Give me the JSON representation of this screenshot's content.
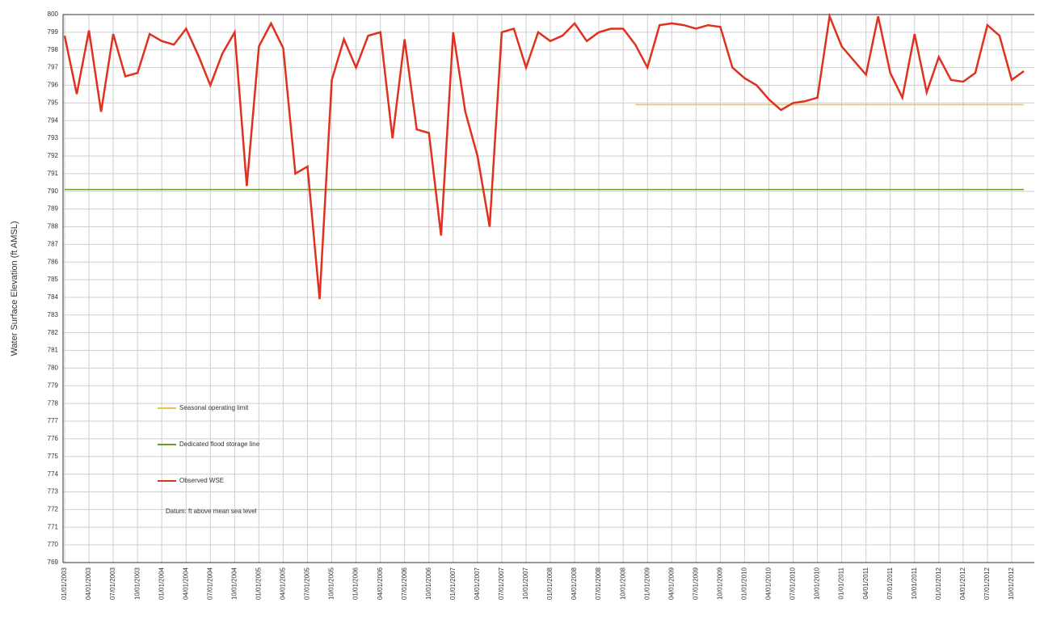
{
  "chart_data": {
    "type": "line",
    "y_label": "Water Surface Elevation (ft AMSL)",
    "note": "Datum: ft above mean sea level",
    "categories": [
      "01/01/2003",
      null,
      "04/01/2003",
      null,
      "07/01/2003",
      null,
      "10/01/2003",
      null,
      "01/01/2004",
      null,
      "04/01/2004",
      null,
      "07/01/2004",
      null,
      "10/01/2004",
      null,
      "01/01/2005",
      null,
      "04/01/2005",
      null,
      "07/01/2005",
      null,
      "10/01/2005",
      null,
      "01/01/2006",
      null,
      "04/01/2006",
      null,
      "07/01/2006",
      null,
      "10/01/2006",
      null,
      "01/01/2007",
      null,
      "04/01/2007",
      null,
      "07/01/2007",
      null,
      "10/01/2007",
      null,
      "01/01/2008",
      null,
      "04/01/2008",
      null,
      "07/01/2008",
      null,
      "10/01/2008",
      null,
      "01/01/2009",
      null,
      "04/01/2009",
      null,
      "07/01/2009",
      null,
      "10/01/2009",
      null,
      "01/01/2010",
      null,
      "04/01/2010",
      null,
      "07/01/2010",
      null,
      "10/01/2010",
      null,
      "01/01/2011",
      null,
      "04/01/2011",
      null,
      "07/01/2011",
      null,
      "10/01/2011",
      null,
      "01/01/2012",
      null,
      "04/01/2012",
      null,
      "07/01/2012",
      null,
      "10/01/2012",
      null
    ],
    "series": [
      {
        "name": "Seasonal operating limit",
        "color": "#f2c04a",
        "values": [
          null,
          null,
          null,
          null,
          null,
          null,
          null,
          null,
          null,
          null,
          null,
          null,
          null,
          null,
          null,
          null,
          null,
          null,
          null,
          null,
          null,
          null,
          null,
          null,
          null,
          null,
          null,
          null,
          null,
          null,
          null,
          null,
          null,
          null,
          null,
          null,
          null,
          null,
          null,
          null,
          null,
          null,
          null,
          null,
          null,
          null,
          null,
          794.9,
          794.9,
          794.9,
          794.9,
          794.9,
          794.9,
          794.9,
          794.9,
          794.9,
          794.9,
          794.9,
          794.9,
          794.9,
          794.9,
          794.9,
          794.9,
          794.9,
          794.9,
          794.9,
          794.9,
          794.9,
          794.9,
          794.9,
          794.9,
          794.9,
          794.9,
          794.9,
          794.9,
          794.9,
          794.9,
          794.9,
          794.9,
          794.9
        ]
      },
      {
        "name": "Dedicated flood storage line",
        "color": "#6a9a2a",
        "values": [
          790.1,
          790.1,
          790.1,
          790.1,
          790.1,
          790.1,
          790.1,
          790.1,
          790.1,
          790.1,
          790.1,
          790.1,
          790.1,
          790.1,
          790.1,
          790.1,
          790.1,
          790.1,
          790.1,
          790.1,
          790.1,
          790.1,
          790.1,
          790.1,
          790.1,
          790.1,
          790.1,
          790.1,
          790.1,
          790.1,
          790.1,
          790.1,
          790.1,
          790.1,
          790.1,
          790.1,
          790.1,
          790.1,
          790.1,
          790.1,
          790.1,
          790.1,
          790.1,
          790.1,
          790.1,
          790.1,
          790.1,
          790.1,
          790.1,
          790.1,
          790.1,
          790.1,
          790.1,
          790.1,
          790.1,
          790.1,
          790.1,
          790.1,
          790.1,
          790.1,
          790.1,
          790.1,
          790.1,
          790.1,
          790.1,
          790.1,
          790.1,
          790.1,
          790.1,
          790.1,
          790.1,
          790.1,
          790.1,
          790.1,
          790.1,
          790.1,
          790.1,
          790.1,
          790.1,
          790.1
        ]
      },
      {
        "name": "Observed WSE",
        "color": "#e0301e",
        "values": [
          798.8,
          795.5,
          799.1,
          794.5,
          798.9,
          796.5,
          796.7,
          798.9,
          798.5,
          798.3,
          799.2,
          797.7,
          796,
          797.8,
          799,
          790.3,
          798.2,
          799.5,
          798.1,
          791,
          791.4,
          783.9,
          796.3,
          798.6,
          797,
          798.8,
          799,
          793,
          798.6,
          793.5,
          793.3,
          787.5,
          799,
          794.5,
          792,
          788,
          799,
          799.2,
          797,
          799,
          798.5,
          798.8,
          799.5,
          798.5,
          799,
          799.2,
          799.2,
          798.3,
          797,
          799.4,
          799.5,
          799.4,
          799.2,
          799.4,
          799.3,
          797,
          796.4,
          796,
          795.2,
          794.6,
          795,
          795.1,
          795.3,
          799.9,
          798.2,
          797.4,
          796.6,
          799.9,
          796.7,
          795.3,
          798.9,
          795.6,
          797.6,
          796.3,
          796.2,
          796.7,
          799.4,
          798.8,
          796.3,
          796.8
        ]
      }
    ],
    "ylim": [
      769,
      800
    ],
    "yticks": [
      800,
      799,
      798,
      797,
      796,
      795,
      794,
      793,
      792,
      791,
      790,
      789,
      788,
      787,
      786,
      785,
      784,
      783,
      782,
      781,
      780,
      779,
      778,
      777,
      776,
      775,
      774,
      773,
      772,
      771,
      770,
      769
    ],
    "grid": true
  }
}
